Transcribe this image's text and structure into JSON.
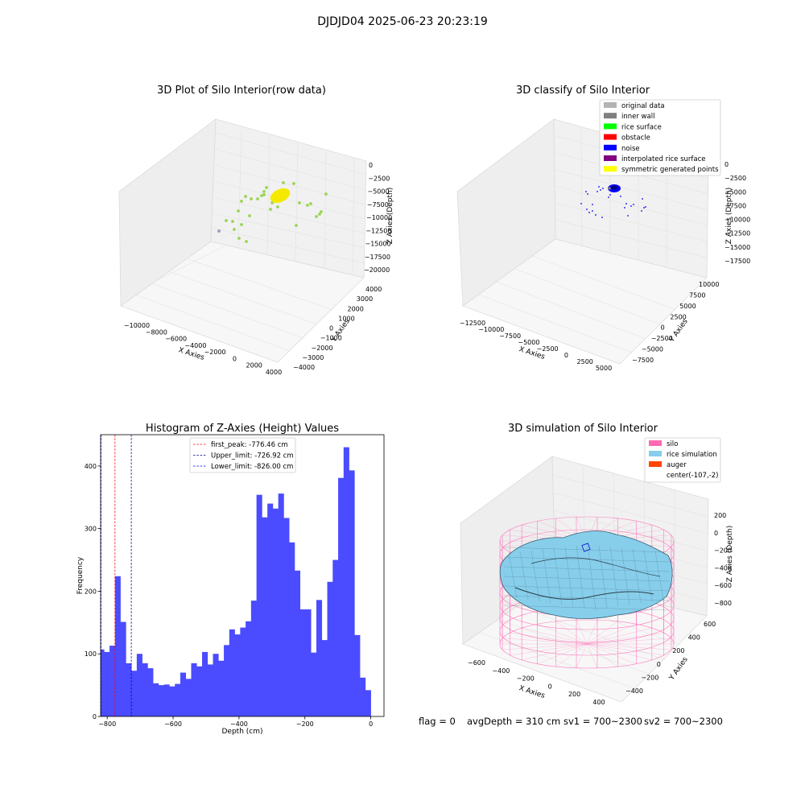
{
  "figure": {
    "title": "DJDJD04 2025-06-23 20:23:19",
    "status": {
      "flag": "flag = 0",
      "avg_depth": "avgDepth = 310 cm",
      "sv1": "sv1 = 700~2300",
      "sv2": "sv2 = 700~2300"
    }
  },
  "chart_data": [
    {
      "type": "scatter3d",
      "title": "3D Plot of Silo Interior(row data)",
      "xlabel": "X Axies",
      "ylabel": "Y Axies",
      "zlabel": "Z Axies (Depth)",
      "x_ticks": [
        "−10000",
        "−8000",
        "−6000",
        "−4000",
        "−2000",
        "0",
        "2000",
        "4000"
      ],
      "y_ticks": [
        "−4000",
        "−3000",
        "−2000",
        "−1000",
        "0",
        "1000",
        "2000",
        "3000",
        "4000"
      ],
      "z_ticks": [
        "0",
        "−2500",
        "−5000",
        "−7500",
        "−10000",
        "−12500",
        "−15000",
        "−17500",
        "−20000"
      ],
      "colors": {
        "cluster": "#f5e900",
        "points": "#9ad454",
        "outlier": "#a999c8"
      }
    },
    {
      "type": "scatter3d",
      "title": "3D classify of Silo Interior",
      "xlabel": "X Axies",
      "ylabel": "Y Axies",
      "zlabel": "Z Axies (Depth)",
      "x_ticks": [
        "−12500",
        "−10000",
        "−7500",
        "−5000",
        "−2500",
        "0",
        "2500",
        "5000"
      ],
      "y_ticks": [
        "−7500",
        "−5000",
        "−2500",
        "0",
        "2500",
        "5000",
        "7500",
        "10000"
      ],
      "z_ticks": [
        "0",
        "−2500",
        "−5000",
        "−7500",
        "−10000",
        "−12500",
        "−15000",
        "−17500"
      ],
      "legend": [
        {
          "label": "original data",
          "color": "#b3b3b3"
        },
        {
          "label": "inner wall",
          "color": "#808080"
        },
        {
          "label": "rice surface",
          "color": "#00ff00"
        },
        {
          "label": "obstacle",
          "color": "#ff0000"
        },
        {
          "label": "noise",
          "color": "#0000ff"
        },
        {
          "label": "interpolated rice surface",
          "color": "#800080"
        },
        {
          "label": "symmetric generated points",
          "color": "#ffff00"
        }
      ]
    },
    {
      "type": "bar",
      "title": "Histogram of Z-Axies (Height) Values",
      "xlabel": "Depth (cm)",
      "ylabel": "Frequency",
      "bin_start": -826,
      "bin_width": 16.52,
      "values": [
        107,
        103,
        113,
        224,
        151,
        85,
        73,
        100,
        85,
        77,
        53,
        50,
        51,
        48,
        52,
        70,
        60,
        85,
        80,
        103,
        83,
        100,
        89,
        114,
        139,
        131,
        142,
        152,
        185,
        354,
        318,
        340,
        332,
        356,
        317,
        278,
        233,
        171,
        171,
        102,
        186,
        122,
        215,
        250,
        381,
        430,
        393,
        130,
        62,
        42
      ],
      "xlim": [
        -820,
        40
      ],
      "ylim": [
        0,
        450
      ],
      "x_ticks": [
        -800,
        -600,
        -400,
        -200,
        0
      ],
      "x_tick_labels": [
        "−800",
        "−600",
        "−400",
        "−200",
        "0"
      ],
      "y_ticks": [
        0,
        100,
        200,
        300,
        400
      ],
      "y_tick_labels": [
        "0",
        "100",
        "200",
        "300",
        "400"
      ],
      "bar_color": "#4b4bff",
      "vlines": [
        {
          "label": "first_peak: -776.46 cm",
          "x": -776.46,
          "color": "#ff0000"
        },
        {
          "label": "Upper_limit: -726.92 cm",
          "x": -726.92,
          "color": "#00008b"
        },
        {
          "label": "Lower_limit: -826.00 cm",
          "x": -826.0,
          "color": "#0000ff"
        }
      ]
    },
    {
      "type": "surface3d",
      "title": "3D simulation of Silo Interior",
      "xlabel": "X Axies",
      "ylabel": "Y Axies",
      "zlabel": "Z Axies (Depth)",
      "x_ticks": [
        "−600",
        "−400",
        "−200",
        "0",
        "200",
        "400"
      ],
      "y_ticks": [
        "−400",
        "−200",
        "0",
        "200",
        "400",
        "600"
      ],
      "z_ticks": [
        "200",
        "0",
        "−200",
        "−400",
        "−600",
        "−800"
      ],
      "legend": [
        {
          "label": "silo",
          "color": "#ff69b4"
        },
        {
          "label": "rice simulation",
          "color": "#87ceeb"
        },
        {
          "label": "auger",
          "color": "#ff4500"
        },
        {
          "label": "center(-107,-2)",
          "color": ""
        }
      ]
    }
  ]
}
